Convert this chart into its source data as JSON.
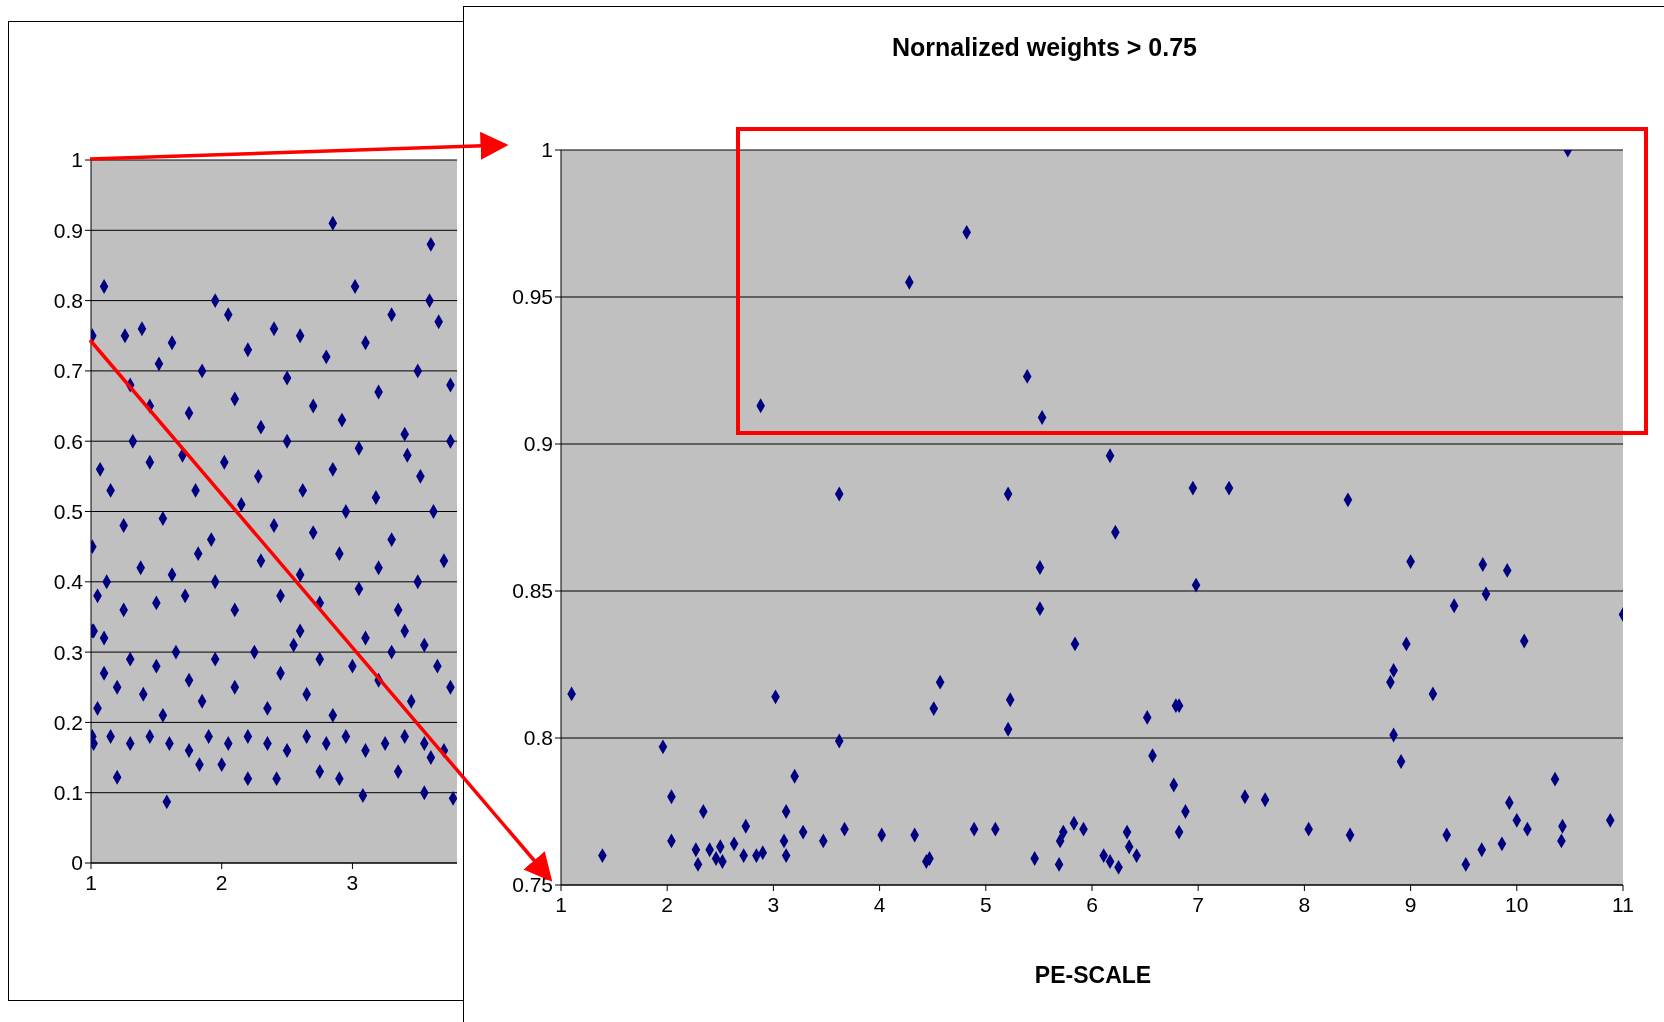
{
  "chart_data": [
    {
      "type": "scatter",
      "xlim": [
        1,
        3.8
      ],
      "ylim": [
        0,
        1
      ],
      "xticks": [
        1,
        2,
        3
      ],
      "yticks": [
        0,
        0.1,
        0.2,
        0.3,
        0.4,
        0.5,
        0.6,
        0.7,
        0.8,
        0.9,
        1
      ],
      "grid": "y",
      "marker": "diamond",
      "series": [
        {
          "color": "#000080",
          "x": [
            1.02,
            1.15,
            1.3,
            1.45,
            1.6,
            1.75,
            1.9,
            2.05,
            2.2,
            2.35,
            2.5,
            2.65,
            2.8,
            2.95,
            3.1,
            3.25,
            3.4,
            3.55,
            3.7,
            1.83,
            2.0,
            2.75,
            3.35,
            3.6,
            1.2,
            1.58,
            3.08,
            3.77,
            2.42,
            2.2,
            2.9,
            3.55,
            1.05,
            1.1,
            1.2,
            1.3,
            1.4,
            1.5,
            1.55,
            1.65,
            1.75,
            1.85,
            1.95,
            2.1,
            2.25,
            2.35,
            2.45,
            2.55,
            2.65,
            2.75,
            2.85,
            3.0,
            3.1,
            3.2,
            3.3,
            3.45,
            3.55,
            3.65,
            3.75,
            1.02,
            1.1,
            2.6,
            3.4,
            1.05,
            1.12,
            1.25,
            1.38,
            1.5,
            1.62,
            1.72,
            1.82,
            1.95,
            2.1,
            2.3,
            2.45,
            2.6,
            2.75,
            2.9,
            3.05,
            3.2,
            3.35,
            3.5,
            3.7,
            1.01,
            1.07,
            1.15,
            1.25,
            1.32,
            1.45,
            1.55,
            1.7,
            1.8,
            1.92,
            2.02,
            2.15,
            2.28,
            2.4,
            2.5,
            2.62,
            2.7,
            2.85,
            2.95,
            3.05,
            3.18,
            3.3,
            3.42,
            3.52,
            3.62,
            3.75,
            1.01,
            1.1,
            1.26,
            1.39,
            1.3,
            1.45,
            1.52,
            1.62,
            1.75,
            1.85,
            1.95,
            2.05,
            2.1,
            2.2,
            2.3,
            2.4,
            2.5,
            2.6,
            2.7,
            2.8,
            2.85,
            2.92,
            3.02,
            3.1,
            3.2,
            3.3,
            3.4,
            3.5,
            3.59,
            3.6,
            3.66,
            3.75,
            1.01,
            1.01
          ],
          "values": [
            0.17,
            0.18,
            0.17,
            0.18,
            0.17,
            0.16,
            0.18,
            0.17,
            0.18,
            0.17,
            0.16,
            0.18,
            0.17,
            0.18,
            0.16,
            0.17,
            0.18,
            0.17,
            0.16,
            0.14,
            0.14,
            0.13,
            0.13,
            0.15,
            0.122,
            0.087,
            0.096,
            0.092,
            0.12,
            0.12,
            0.12,
            0.1,
            0.22,
            0.27,
            0.25,
            0.29,
            0.24,
            0.28,
            0.21,
            0.3,
            0.26,
            0.23,
            0.29,
            0.25,
            0.3,
            0.22,
            0.27,
            0.31,
            0.24,
            0.29,
            0.21,
            0.28,
            0.32,
            0.26,
            0.3,
            0.23,
            0.31,
            0.28,
            0.25,
            0.33,
            0.32,
            0.33,
            0.33,
            0.38,
            0.4,
            0.36,
            0.42,
            0.37,
            0.41,
            0.38,
            0.44,
            0.4,
            0.36,
            0.43,
            0.38,
            0.41,
            0.37,
            0.44,
            0.39,
            0.42,
            0.36,
            0.4,
            0.43,
            0.45,
            0.56,
            0.53,
            0.48,
            0.6,
            0.57,
            0.49,
            0.58,
            0.53,
            0.46,
            0.57,
            0.51,
            0.55,
            0.48,
            0.6,
            0.53,
            0.47,
            0.56,
            0.5,
            0.59,
            0.52,
            0.46,
            0.58,
            0.55,
            0.5,
            0.6,
            0.75,
            0.82,
            0.75,
            0.76,
            0.68,
            0.65,
            0.71,
            0.74,
            0.64,
            0.7,
            0.8,
            0.78,
            0.66,
            0.73,
            0.62,
            0.76,
            0.69,
            0.75,
            0.65,
            0.72,
            0.91,
            0.63,
            0.82,
            0.74,
            0.67,
            0.78,
            0.61,
            0.7,
            0.8,
            0.88,
            0.77,
            0.68,
            0.33,
            0.18
          ]
        }
      ]
    },
    {
      "type": "scatter",
      "title": "Nornalized weights > 0.75",
      "xlabel": "PE-SCALE",
      "xlim": [
        1,
        11
      ],
      "ylim": [
        0.75,
        1
      ],
      "xticks": [
        1,
        2,
        3,
        4,
        5,
        6,
        7,
        8,
        9,
        10,
        11
      ],
      "yticks": [
        0.75,
        0.8,
        0.85,
        0.9,
        0.95,
        1
      ],
      "grid": "y",
      "marker": "diamond",
      "series": [
        {
          "color": "#000080",
          "x": [
            1.1,
            1.39,
            1.96,
            2.04,
            2.04,
            2.27,
            2.29,
            2.34,
            2.4,
            2.46,
            2.5,
            2.52,
            2.63,
            2.74,
            2.72,
            2.84,
            2.9,
            2.88,
            3.02,
            3.12,
            3.12,
            3.1,
            3.2,
            3.28,
            3.47,
            3.62,
            3.62,
            3.67,
            4.02,
            4.28,
            4.33,
            4.44,
            4.47,
            4.51,
            4.57,
            4.82,
            4.89,
            5.09,
            5.21,
            5.23,
            5.21,
            5.39,
            5.46,
            5.51,
            5.51,
            5.53,
            5.7,
            5.69,
            5.73,
            5.84,
            5.83,
            5.92,
            6.11,
            6.17,
            6.17,
            6.22,
            6.25,
            6.33,
            6.35,
            6.42,
            6.52,
            6.57,
            6.77,
            6.79,
            6.82,
            6.82,
            6.88,
            6.95,
            6.98,
            7.29,
            7.44,
            7.63,
            8.04,
            8.41,
            8.43,
            8.81,
            8.84,
            8.84,
            8.91,
            8.96,
            9.0,
            9.21,
            9.34,
            9.41,
            9.52,
            9.67,
            9.68,
            9.71,
            9.86,
            9.91,
            9.93,
            10.0,
            10.07,
            10.1,
            10.36,
            10.42,
            10.43,
            10.48,
            10.88,
            11.0
          ],
          "values": [
            0.815,
            0.76,
            0.797,
            0.78,
            0.765,
            0.762,
            0.757,
            0.775,
            0.762,
            0.759,
            0.763,
            0.758,
            0.764,
            0.77,
            0.76,
            0.76,
            0.761,
            0.913,
            0.814,
            0.775,
            0.76,
            0.765,
            0.787,
            0.768,
            0.765,
            0.883,
            0.799,
            0.769,
            0.767,
            0.955,
            0.767,
            0.758,
            0.759,
            0.81,
            0.819,
            0.972,
            0.769,
            0.769,
            0.883,
            0.813,
            0.803,
            0.923,
            0.759,
            0.858,
            0.844,
            0.909,
            0.765,
            0.757,
            0.768,
            0.832,
            0.771,
            0.769,
            0.76,
            0.896,
            0.758,
            0.87,
            0.756,
            0.768,
            0.763,
            0.76,
            0.807,
            0.794,
            0.784,
            0.811,
            0.811,
            0.768,
            0.775,
            0.885,
            0.852,
            0.885,
            0.78,
            0.779,
            0.769,
            0.881,
            0.767,
            0.819,
            0.823,
            0.801,
            0.792,
            0.832,
            0.86,
            0.815,
            0.767,
            0.845,
            0.757,
            0.762,
            0.859,
            0.849,
            0.764,
            0.857,
            0.778,
            0.772,
            0.833,
            0.769,
            0.786,
            0.765,
            0.77,
            1.0,
            0.772,
            0.842
          ]
        }
      ]
    }
  ]
}
